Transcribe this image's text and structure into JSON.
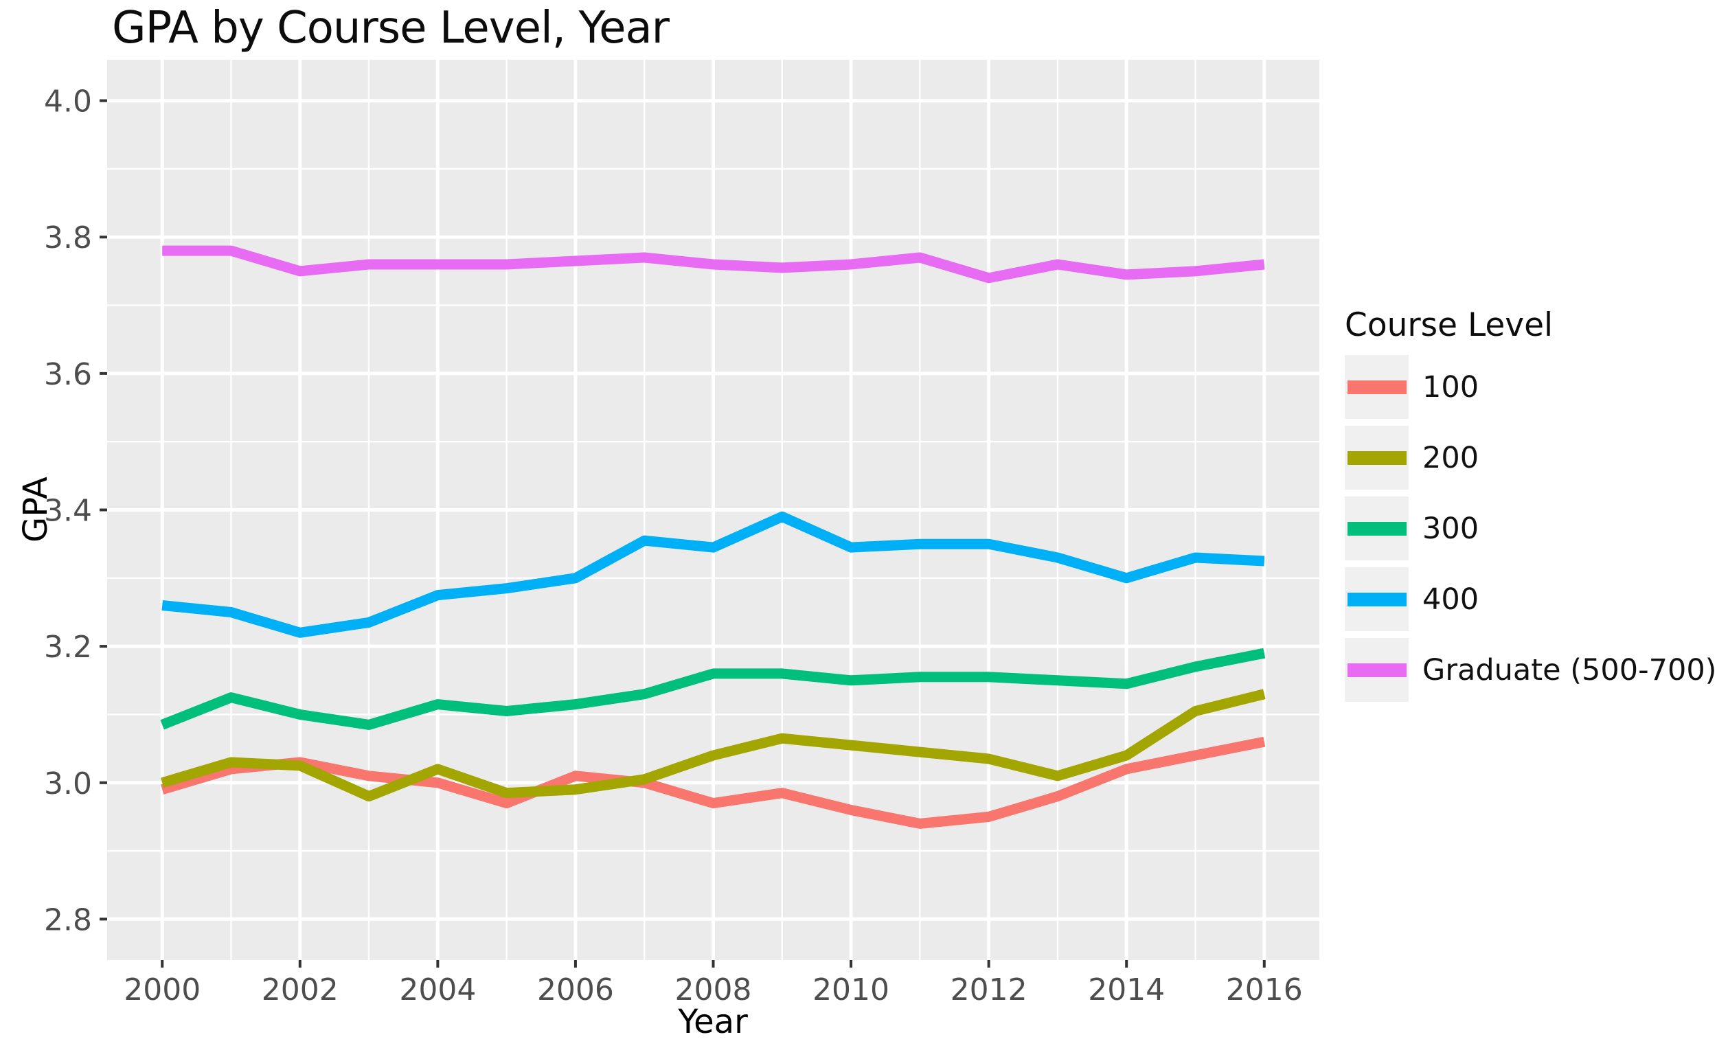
{
  "page": {
    "background": "#FFFFFF"
  },
  "chart_data": {
    "type": "line",
    "title": "GPA by Course Level, Year",
    "xlabel": "Year",
    "ylabel": "GPA",
    "x": [
      2000,
      2001,
      2002,
      2003,
      2004,
      2005,
      2006,
      2007,
      2008,
      2009,
      2010,
      2011,
      2012,
      2013,
      2014,
      2015,
      2016
    ],
    "xlim": [
      1999.2,
      2016.8
    ],
    "ylim": [
      2.74,
      4.06
    ],
    "x_ticks": [
      2000,
      2002,
      2004,
      2006,
      2008,
      2010,
      2012,
      2014,
      2016
    ],
    "y_ticks": [
      "2.8",
      "3.0",
      "3.2",
      "3.4",
      "3.6",
      "3.8",
      "4.0"
    ],
    "grid": "major+minor",
    "legend_position": "right",
    "series": [
      {
        "name": "100",
        "color": "#F8766D",
        "values": [
          2.99,
          3.02,
          3.03,
          3.01,
          3.0,
          2.97,
          3.01,
          3.0,
          2.97,
          2.985,
          2.96,
          2.94,
          2.95,
          2.98,
          3.02,
          3.04,
          3.06
        ]
      },
      {
        "name": "200",
        "color": "#A3A500",
        "values": [
          3.0,
          3.03,
          3.025,
          2.98,
          3.02,
          2.985,
          2.99,
          3.005,
          3.04,
          3.065,
          3.055,
          3.045,
          3.035,
          3.01,
          3.04,
          3.105,
          3.13
        ]
      },
      {
        "name": "300",
        "color": "#00BF7D",
        "values": [
          3.085,
          3.125,
          3.1,
          3.085,
          3.115,
          3.105,
          3.115,
          3.13,
          3.16,
          3.16,
          3.15,
          3.155,
          3.155,
          3.15,
          3.145,
          3.17,
          3.19
        ]
      },
      {
        "name": "400",
        "color": "#00B0F6",
        "values": [
          3.26,
          3.25,
          3.22,
          3.235,
          3.275,
          3.285,
          3.3,
          3.355,
          3.345,
          3.39,
          3.345,
          3.35,
          3.35,
          3.33,
          3.3,
          3.33,
          3.325
        ]
      },
      {
        "name": "Graduate (500-700)",
        "color": "#E76BF3",
        "values": [
          3.78,
          3.78,
          3.75,
          3.76,
          3.76,
          3.76,
          3.765,
          3.77,
          3.76,
          3.755,
          3.76,
          3.77,
          3.74,
          3.76,
          3.745,
          3.75,
          3.76
        ]
      }
    ]
  },
  "legend": {
    "title": "Course Level"
  },
  "style": {
    "panel_bg": "#EBEBEB",
    "grid_color": "#FFFFFF",
    "tick_color": "#333333",
    "tick_label_color": "#4D4D4D",
    "legend_key_bg": "#F0F0F0"
  }
}
